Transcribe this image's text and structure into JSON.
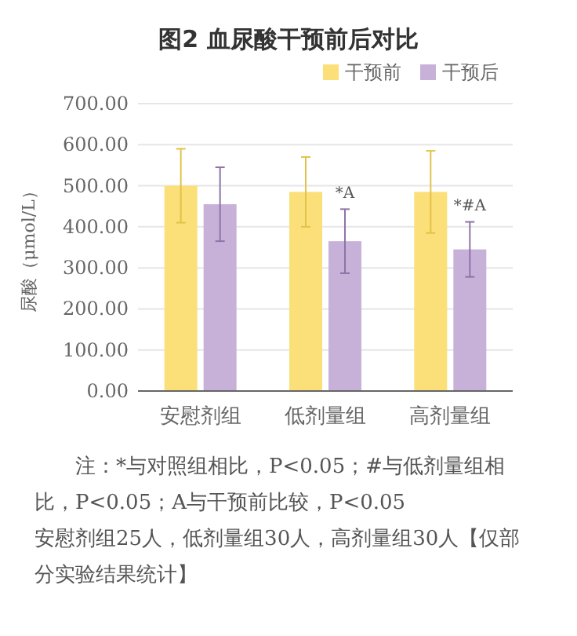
{
  "chart_data": {
    "type": "bar",
    "title": "图2  血尿酸干预前后对比",
    "ylabel": "尿酸（μmol/L）",
    "categories": [
      "安慰剂组",
      "低剂量组",
      "高剂量组"
    ],
    "series": [
      {
        "name": "干预前",
        "color": "#fbe07a",
        "values": [
          500,
          485,
          485
        ],
        "errors": [
          90,
          85,
          100
        ]
      },
      {
        "name": "干预后",
        "color": "#c8b1d9",
        "values": [
          455,
          365,
          345
        ],
        "errors": [
          90,
          78,
          67
        ]
      }
    ],
    "ylim": [
      0,
      700
    ],
    "yticks": [
      {
        "value": 0,
        "label": "0.00"
      },
      {
        "value": 100,
        "label": "100.00"
      },
      {
        "value": 200,
        "label": "200.00"
      },
      {
        "value": 300,
        "label": "300.00"
      },
      {
        "value": 400,
        "label": "400.00"
      },
      {
        "value": 500,
        "label": "500.00"
      },
      {
        "value": 600,
        "label": "600.00"
      },
      {
        "value": 700,
        "label": "700.00"
      }
    ],
    "grid": "y",
    "legend": "top right",
    "annotations": [
      {
        "text": "*A",
        "x": "低剂量组",
        "y": 470
      },
      {
        "text": "*#A",
        "x": "高剂量组",
        "y": 440
      },
      "注：*与对照组相比，P<0.05；#与低剂量组相比，P<0.05；A与干预前比较，P<0.05",
      "安慰剂组25人，低剂量组30人，高剂量组30人【仅部分实验结果统计】"
    ]
  }
}
